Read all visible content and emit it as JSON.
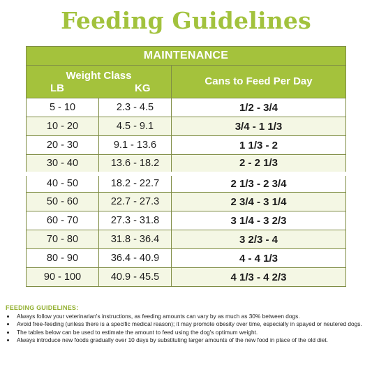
{
  "title": "Feeding Guidelines",
  "table": {
    "section_header": "MAINTENANCE",
    "weight_class_header": "Weight Class",
    "lb_header": "LB",
    "kg_header": "KG",
    "cans_header": "Cans to Feed Per Day",
    "rows": [
      {
        "lb": "5 - 10",
        "kg": "2.3 - 4.5",
        "cans": "1/2 - 3/4"
      },
      {
        "lb": "10 - 20",
        "kg": "4.5 - 9.1",
        "cans": "3/4 - 1 1/3"
      },
      {
        "lb": "20 - 30",
        "kg": "9.1 - 13.6",
        "cans": "1 1/3 - 2"
      },
      {
        "lb": "30 - 40",
        "kg": "13.6 - 18.2",
        "cans": "2 - 2 1/3"
      },
      {
        "lb": "40 - 50",
        "kg": "18.2 - 22.7",
        "cans": "2 1/3 - 2 3/4"
      },
      {
        "lb": "50 - 60",
        "kg": "22.7 - 27.3",
        "cans": "2 3/4 - 3 1/4"
      },
      {
        "lb": "60 - 70",
        "kg": "27.3 - 31.8",
        "cans": "3 1/4 - 3 2/3"
      },
      {
        "lb": "70 - 80",
        "kg": "31.8 - 36.4",
        "cans": "3 2/3 - 4"
      },
      {
        "lb": "80 - 90",
        "kg": "36.4 - 40.9",
        "cans": "4 - 4 1/3"
      },
      {
        "lb": "90 - 100",
        "kg": "40.9 - 45.5",
        "cans": "4 1/3 - 4 2/3"
      }
    ]
  },
  "notes": {
    "heading": "FEEDING GUIDELINES:",
    "items": [
      "Always follow your veterinarian's instructions, as feeding amounts can vary by as much as 30% between dogs.",
      "Avoid free-feeding (unless there is a specific medical reason); it may promote obesity over time, especially in spayed or neutered dogs.",
      "The tables below can be used to estimate the amount to feed using the dog's optimum weight.",
      "Always introduce new foods gradually over 10 days by substituting larger amounts of the new food in place of the old diet."
    ]
  },
  "colors": {
    "accent": "#a4c23c",
    "title": "#a2c23d",
    "row_tint": "#f4f7e4",
    "border": "#7f8d45"
  }
}
